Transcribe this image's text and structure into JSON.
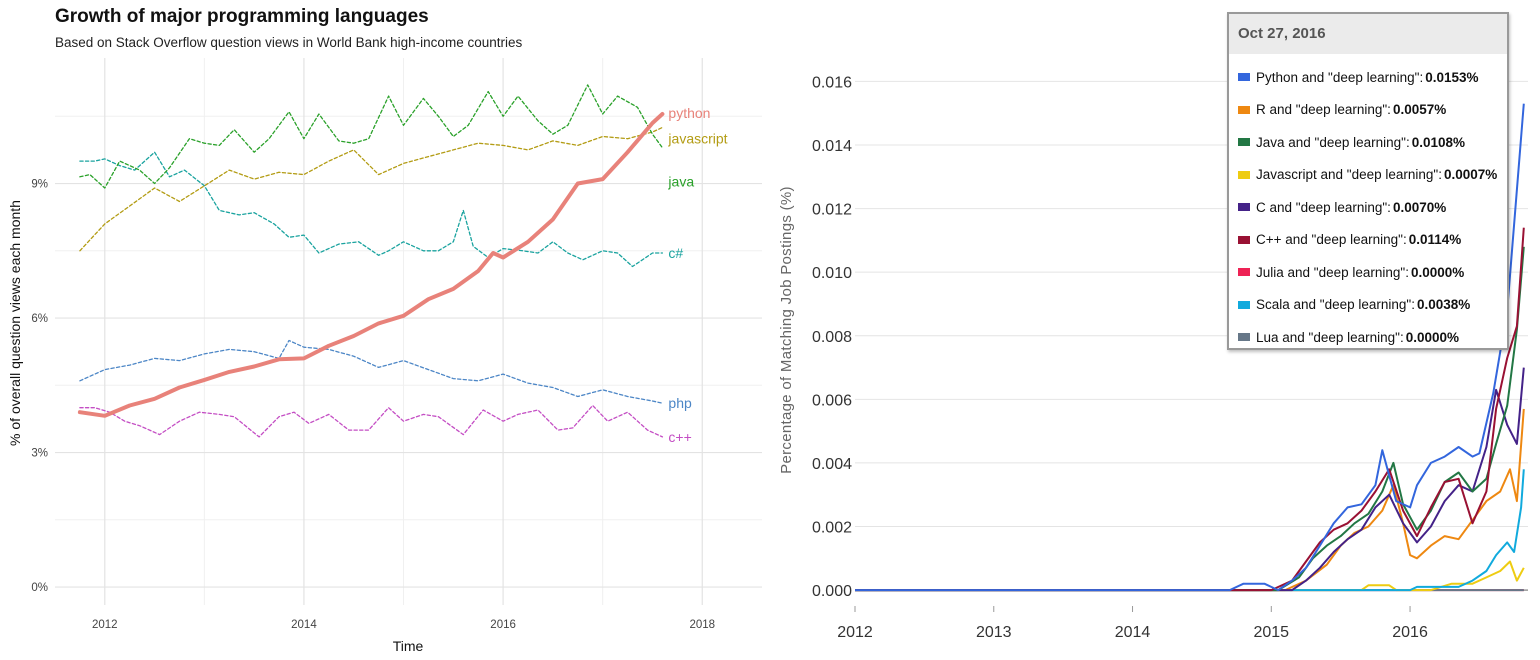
{
  "chart_data": [
    {
      "type": "line",
      "title": "Growth of major programming languages",
      "subtitle": "Based on Stack Overflow question views in World Bank high-income countries",
      "xlabel": "Time",
      "ylabel": "% of overall question views each month",
      "xlim": [
        2011.5,
        2018.6
      ],
      "ylim": [
        -0.4,
        11.8
      ],
      "x_ticks": [
        2012,
        2014,
        2016,
        2018
      ],
      "x_tick_labels": [
        "2012",
        "2014",
        "2016",
        "2018"
      ],
      "y_ticks": [
        0,
        3,
        6,
        9
      ],
      "y_tick_labels": [
        "0%",
        "3%",
        "6%",
        "9%"
      ],
      "grid": true,
      "series": [
        {
          "name": "python",
          "color": "#e8827a",
          "style": "solid",
          "width": 4,
          "x": [
            2011.75,
            2012.0,
            2012.25,
            2012.5,
            2012.75,
            2013.0,
            2013.25,
            2013.5,
            2013.75,
            2014.0,
            2014.25,
            2014.5,
            2014.75,
            2015.0,
            2015.25,
            2015.5,
            2015.75,
            2015.9,
            2016.0,
            2016.25,
            2016.5,
            2016.75,
            2017.0,
            2017.25,
            2017.5,
            2017.6
          ],
          "values": [
            3.9,
            3.82,
            4.05,
            4.2,
            4.45,
            4.62,
            4.8,
            4.92,
            5.08,
            5.1,
            5.38,
            5.6,
            5.88,
            6.05,
            6.42,
            6.65,
            7.05,
            7.45,
            7.35,
            7.7,
            8.2,
            9.0,
            9.1,
            9.7,
            10.35,
            10.55
          ]
        },
        {
          "name": "javascript",
          "color": "#b39c14",
          "style": "dashed",
          "width": 1.3,
          "x": [
            2011.75,
            2012.0,
            2012.25,
            2012.5,
            2012.75,
            2013.0,
            2013.25,
            2013.5,
            2013.75,
            2014.0,
            2014.25,
            2014.5,
            2014.75,
            2015.0,
            2015.25,
            2015.5,
            2015.75,
            2016.0,
            2016.25,
            2016.5,
            2016.75,
            2017.0,
            2017.25,
            2017.5,
            2017.6
          ],
          "values": [
            7.5,
            8.1,
            8.5,
            8.9,
            8.6,
            8.95,
            9.3,
            9.1,
            9.25,
            9.2,
            9.5,
            9.75,
            9.2,
            9.45,
            9.6,
            9.75,
            9.9,
            9.85,
            9.75,
            9.95,
            9.85,
            10.05,
            10.0,
            10.15,
            10.25
          ]
        },
        {
          "name": "java",
          "color": "#2aa12a",
          "style": "dashed",
          "width": 1.3,
          "x": [
            2011.75,
            2011.85,
            2012.0,
            2012.15,
            2012.35,
            2012.5,
            2012.65,
            2012.85,
            2013.0,
            2013.15,
            2013.3,
            2013.5,
            2013.65,
            2013.85,
            2014.0,
            2014.15,
            2014.35,
            2014.5,
            2014.65,
            2014.85,
            2015.0,
            2015.2,
            2015.35,
            2015.5,
            2015.65,
            2015.85,
            2016.0,
            2016.15,
            2016.35,
            2016.5,
            2016.65,
            2016.85,
            2017.0,
            2017.15,
            2017.35,
            2017.5,
            2017.6
          ],
          "values": [
            9.15,
            9.2,
            8.9,
            9.5,
            9.3,
            9.0,
            9.35,
            10.0,
            9.9,
            9.85,
            10.2,
            9.7,
            10.0,
            10.6,
            10.0,
            10.55,
            9.95,
            9.9,
            10.0,
            10.95,
            10.3,
            10.9,
            10.5,
            10.05,
            10.3,
            11.05,
            10.5,
            10.95,
            10.4,
            10.1,
            10.3,
            11.2,
            10.55,
            10.95,
            10.7,
            10.1,
            9.8
          ]
        },
        {
          "name": "c#",
          "color": "#1aa39f",
          "style": "dashed",
          "width": 1.3,
          "x": [
            2011.75,
            2011.9,
            2012.0,
            2012.15,
            2012.3,
            2012.5,
            2012.65,
            2012.8,
            2013.0,
            2013.15,
            2013.35,
            2013.5,
            2013.7,
            2013.85,
            2014.0,
            2014.15,
            2014.35,
            2014.55,
            2014.75,
            2014.85,
            2015.0,
            2015.2,
            2015.35,
            2015.5,
            2015.6,
            2015.7,
            2015.85,
            2016.0,
            2016.2,
            2016.35,
            2016.5,
            2016.65,
            2016.8,
            2017.0,
            2017.15,
            2017.3,
            2017.5,
            2017.6
          ],
          "values": [
            9.5,
            9.5,
            9.55,
            9.4,
            9.3,
            9.7,
            9.15,
            9.3,
            8.95,
            8.4,
            8.3,
            8.35,
            8.1,
            7.8,
            7.85,
            7.45,
            7.65,
            7.7,
            7.4,
            7.5,
            7.7,
            7.5,
            7.5,
            7.7,
            8.4,
            7.6,
            7.35,
            7.55,
            7.5,
            7.45,
            7.7,
            7.45,
            7.3,
            7.5,
            7.45,
            7.15,
            7.45,
            7.45
          ]
        },
        {
          "name": "php",
          "color": "#4c86c6",
          "style": "dashed",
          "width": 1.3,
          "x": [
            2011.75,
            2012.0,
            2012.25,
            2012.5,
            2012.75,
            2013.0,
            2013.25,
            2013.5,
            2013.75,
            2013.85,
            2014.0,
            2014.25,
            2014.5,
            2014.75,
            2015.0,
            2015.25,
            2015.5,
            2015.75,
            2016.0,
            2016.25,
            2016.5,
            2016.75,
            2017.0,
            2017.25,
            2017.5,
            2017.6
          ],
          "values": [
            4.6,
            4.85,
            4.95,
            5.1,
            5.05,
            5.2,
            5.3,
            5.25,
            5.1,
            5.5,
            5.35,
            5.3,
            5.15,
            4.9,
            5.05,
            4.85,
            4.65,
            4.6,
            4.75,
            4.55,
            4.45,
            4.25,
            4.4,
            4.25,
            4.15,
            4.1
          ]
        },
        {
          "name": "c++",
          "color": "#c44ec4",
          "style": "dashed",
          "width": 1.3,
          "x": [
            2011.75,
            2011.9,
            2012.05,
            2012.2,
            2012.35,
            2012.55,
            2012.75,
            2012.95,
            2013.15,
            2013.3,
            2013.55,
            2013.75,
            2013.9,
            2014.05,
            2014.25,
            2014.45,
            2014.65,
            2014.85,
            2015.0,
            2015.2,
            2015.35,
            2015.6,
            2015.8,
            2016.0,
            2016.15,
            2016.35,
            2016.55,
            2016.7,
            2016.9,
            2017.05,
            2017.25,
            2017.45,
            2017.6
          ],
          "values": [
            4.0,
            4.0,
            3.9,
            3.7,
            3.6,
            3.4,
            3.7,
            3.9,
            3.85,
            3.8,
            3.35,
            3.8,
            3.9,
            3.65,
            3.85,
            3.5,
            3.5,
            4.0,
            3.7,
            3.85,
            3.8,
            3.4,
            3.95,
            3.7,
            3.85,
            3.95,
            3.5,
            3.55,
            4.05,
            3.7,
            3.9,
            3.5,
            3.35
          ]
        }
      ]
    },
    {
      "type": "line",
      "ylabel": "Percentage of Matching Job Postings (%)",
      "xlim": [
        2012.0,
        2016.85
      ],
      "ylim": [
        -0.0005,
        0.0168
      ],
      "x_ticks": [
        2012,
        2013,
        2014,
        2015,
        2016
      ],
      "x_tick_labels": [
        "2012",
        "2013",
        "2014",
        "2015",
        "2016"
      ],
      "y_ticks": [
        0.0,
        0.002,
        0.004,
        0.006,
        0.008,
        0.01,
        0.012,
        0.014,
        0.016
      ],
      "y_tick_labels": [
        "0.000",
        "0.002",
        "0.004",
        "0.006",
        "0.008",
        "0.010",
        "0.012",
        "0.014",
        "0.016"
      ],
      "grid": true,
      "legend_position": "top-right",
      "tooltip_date": "Oct 27, 2016",
      "series": [
        {
          "name": "Python and \"deep learning\"",
          "color": "#3366dd",
          "tooltip_value": "0.0153%",
          "x": [
            2012.0,
            2014.7,
            2014.8,
            2014.95,
            2015.05,
            2015.15,
            2015.25,
            2015.35,
            2015.45,
            2015.55,
            2015.65,
            2015.75,
            2015.8,
            2015.9,
            2016.0,
            2016.05,
            2016.15,
            2016.25,
            2016.35,
            2016.45,
            2016.5,
            2016.6,
            2016.7,
            2016.75,
            2016.82
          ],
          "values": [
            0.0,
            0.0,
            0.0002,
            0.0002,
            0.0,
            0.0003,
            0.0007,
            0.0014,
            0.0021,
            0.0026,
            0.0027,
            0.0033,
            0.0044,
            0.0028,
            0.0026,
            0.0033,
            0.004,
            0.0042,
            0.0045,
            0.0042,
            0.0043,
            0.0062,
            0.0088,
            0.0115,
            0.0153
          ]
        },
        {
          "name": "R and \"deep learning\"",
          "color": "#ee8811",
          "tooltip_value": "0.0057%",
          "x": [
            2012.0,
            2015.1,
            2015.25,
            2015.4,
            2015.5,
            2015.6,
            2015.7,
            2015.8,
            2015.88,
            2015.95,
            2016.0,
            2016.05,
            2016.15,
            2016.25,
            2016.35,
            2016.45,
            2016.55,
            2016.65,
            2016.72,
            2016.77,
            2016.82
          ],
          "values": [
            0.0,
            0.0,
            0.0003,
            0.0008,
            0.0014,
            0.0018,
            0.002,
            0.0025,
            0.0033,
            0.0021,
            0.0011,
            0.001,
            0.0014,
            0.0017,
            0.0016,
            0.0022,
            0.0028,
            0.0031,
            0.0038,
            0.0028,
            0.0057
          ]
        },
        {
          "name": "Java and \"deep learning\"",
          "color": "#227744",
          "tooltip_value": "0.0108%",
          "x": [
            2012.0,
            2015.05,
            2015.2,
            2015.3,
            2015.4,
            2015.5,
            2015.6,
            2015.7,
            2015.8,
            2015.88,
            2015.95,
            2016.05,
            2016.15,
            2016.25,
            2016.35,
            2016.45,
            2016.55,
            2016.62,
            2016.7,
            2016.77,
            2016.82
          ],
          "values": [
            0.0,
            0.0,
            0.0004,
            0.001,
            0.0014,
            0.0017,
            0.0021,
            0.0024,
            0.0031,
            0.004,
            0.0027,
            0.0019,
            0.0025,
            0.0034,
            0.0037,
            0.0031,
            0.0035,
            0.0046,
            0.0058,
            0.0082,
            0.0108
          ]
        },
        {
          "name": "Javascript and \"deep learning\"",
          "color": "#eecc11",
          "tooltip_value": "0.0007%",
          "x": [
            2012.0,
            2015.65,
            2015.7,
            2015.85,
            2015.9,
            2016.15,
            2016.3,
            2016.45,
            2016.55,
            2016.65,
            2016.72,
            2016.77,
            2016.82
          ],
          "values": [
            0.0,
            0.0,
            0.00015,
            0.00015,
            0.0,
            0.0,
            0.0002,
            0.0002,
            0.0004,
            0.0006,
            0.0009,
            0.0003,
            0.0007
          ]
        },
        {
          "name": "C and \"deep learning\"",
          "color": "#442288",
          "tooltip_value": "0.0070%",
          "x": [
            2012.0,
            2015.15,
            2015.25,
            2015.35,
            2015.45,
            2015.55,
            2015.65,
            2015.75,
            2015.85,
            2015.95,
            2016.05,
            2016.15,
            2016.25,
            2016.35,
            2016.45,
            2016.55,
            2016.62,
            2016.7,
            2016.77,
            2016.82
          ],
          "values": [
            0.0,
            0.0,
            0.0003,
            0.0007,
            0.0012,
            0.0016,
            0.0019,
            0.0026,
            0.003,
            0.0021,
            0.0015,
            0.002,
            0.0028,
            0.0033,
            0.0031,
            0.0045,
            0.0063,
            0.0052,
            0.0046,
            0.007
          ]
        },
        {
          "name": "C++ and \"deep learning\"",
          "color": "#991133",
          "tooltip_value": "0.0114%",
          "x": [
            2012.0,
            2015.0,
            2015.15,
            2015.25,
            2015.35,
            2015.45,
            2015.55,
            2015.65,
            2015.75,
            2015.85,
            2015.95,
            2016.05,
            2016.15,
            2016.25,
            2016.35,
            2016.45,
            2016.55,
            2016.62,
            2016.7,
            2016.77,
            2016.82
          ],
          "values": [
            0.0,
            0.0,
            0.0003,
            0.0009,
            0.0015,
            0.0019,
            0.0021,
            0.0025,
            0.0031,
            0.0038,
            0.0025,
            0.0017,
            0.0026,
            0.0034,
            0.0035,
            0.0021,
            0.0031,
            0.0057,
            0.0073,
            0.0083,
            0.0114
          ]
        },
        {
          "name": "Julia and \"deep learning\"",
          "color": "#ee2255",
          "tooltip_value": "0.0000%",
          "x": [
            2012.0,
            2016.82
          ],
          "values": [
            0.0,
            0.0
          ]
        },
        {
          "name": "Scala and \"deep learning\"",
          "color": "#11aadd",
          "tooltip_value": "0.0038%",
          "x": [
            2012.0,
            2016.0,
            2016.05,
            2016.35,
            2016.45,
            2016.55,
            2016.62,
            2016.7,
            2016.75,
            2016.8,
            2016.82
          ],
          "values": [
            0.0,
            0.0,
            0.0001,
            0.0001,
            0.0003,
            0.0006,
            0.0011,
            0.0015,
            0.0012,
            0.0026,
            0.0038
          ]
        },
        {
          "name": "Lua and \"deep learning\"",
          "color": "#667788",
          "tooltip_value": "0.0000%",
          "x": [
            2012.0,
            2016.82
          ],
          "values": [
            0.0,
            0.0
          ]
        }
      ]
    }
  ]
}
